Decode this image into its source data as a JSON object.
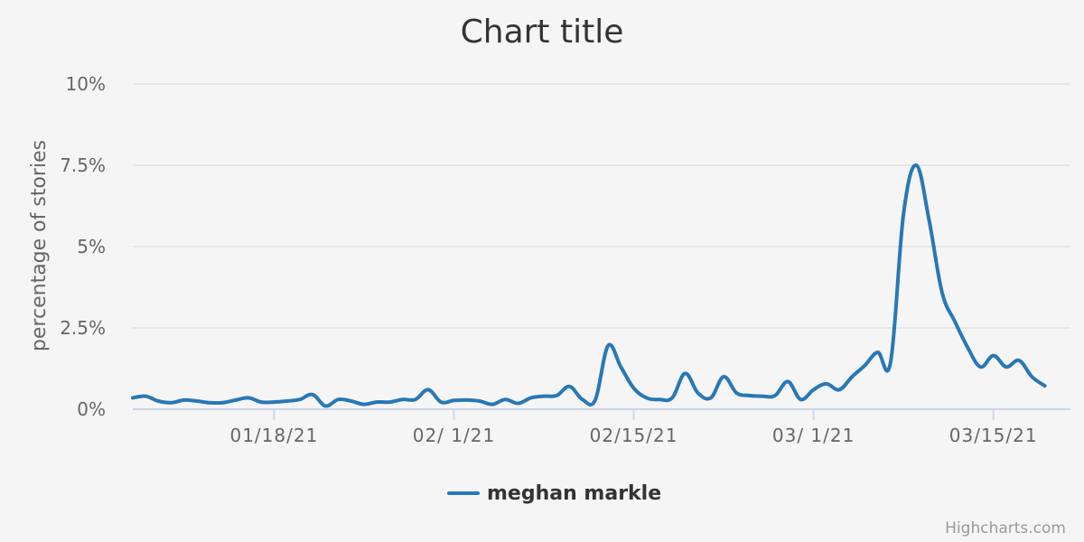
{
  "chart_data": {
    "type": "line",
    "title": "Chart title",
    "ylabel": "percentage of stories",
    "xlabel": "",
    "ylim": [
      0,
      10
    ],
    "yticks": [
      {
        "value": 0,
        "label": "0%"
      },
      {
        "value": 2.5,
        "label": "2.5%"
      },
      {
        "value": 5,
        "label": "5%"
      },
      {
        "value": 7.5,
        "label": "7.5%"
      },
      {
        "value": 10,
        "label": "10%"
      }
    ],
    "xrange": [
      "2021-01-07",
      "2021-03-21"
    ],
    "xticks": [
      {
        "date": "2021-01-18",
        "label": "01/18/21"
      },
      {
        "date": "2021-02-01",
        "label": "02/ 1/21"
      },
      {
        "date": "2021-02-15",
        "label": "02/15/21"
      },
      {
        "date": "2021-03-01",
        "label": "03/ 1/21"
      },
      {
        "date": "2021-03-15",
        "label": "03/15/21"
      }
    ],
    "grid": true,
    "legend_position": "bottom-center",
    "series": [
      {
        "name": "meghan markle",
        "color": "#2878b5",
        "points": [
          [
            "2021-01-07",
            0.35
          ],
          [
            "2021-01-08",
            0.4
          ],
          [
            "2021-01-09",
            0.25
          ],
          [
            "2021-01-10",
            0.2
          ],
          [
            "2021-01-11",
            0.28
          ],
          [
            "2021-01-12",
            0.25
          ],
          [
            "2021-01-13",
            0.2
          ],
          [
            "2021-01-14",
            0.2
          ],
          [
            "2021-01-15",
            0.28
          ],
          [
            "2021-01-16",
            0.35
          ],
          [
            "2021-01-17",
            0.22
          ],
          [
            "2021-01-18",
            0.22
          ],
          [
            "2021-01-19",
            0.25
          ],
          [
            "2021-01-20",
            0.3
          ],
          [
            "2021-01-21",
            0.45
          ],
          [
            "2021-01-22",
            0.1
          ],
          [
            "2021-01-23",
            0.3
          ],
          [
            "2021-01-24",
            0.25
          ],
          [
            "2021-01-25",
            0.15
          ],
          [
            "2021-01-26",
            0.22
          ],
          [
            "2021-01-27",
            0.22
          ],
          [
            "2021-01-28",
            0.3
          ],
          [
            "2021-01-29",
            0.3
          ],
          [
            "2021-01-30",
            0.6
          ],
          [
            "2021-01-31",
            0.22
          ],
          [
            "2021-02-01",
            0.27
          ],
          [
            "2021-02-02",
            0.28
          ],
          [
            "2021-02-03",
            0.25
          ],
          [
            "2021-02-04",
            0.15
          ],
          [
            "2021-02-05",
            0.3
          ],
          [
            "2021-02-06",
            0.18
          ],
          [
            "2021-02-07",
            0.35
          ],
          [
            "2021-02-08",
            0.4
          ],
          [
            "2021-02-09",
            0.42
          ],
          [
            "2021-02-10",
            0.7
          ],
          [
            "2021-02-11",
            0.3
          ],
          [
            "2021-02-12",
            0.28
          ],
          [
            "2021-02-13",
            1.95
          ],
          [
            "2021-02-14",
            1.3
          ],
          [
            "2021-02-15",
            0.65
          ],
          [
            "2021-02-16",
            0.35
          ],
          [
            "2021-02-17",
            0.3
          ],
          [
            "2021-02-18",
            0.35
          ],
          [
            "2021-02-19",
            1.1
          ],
          [
            "2021-02-20",
            0.5
          ],
          [
            "2021-02-21",
            0.35
          ],
          [
            "2021-02-22",
            1.0
          ],
          [
            "2021-02-23",
            0.5
          ],
          [
            "2021-02-24",
            0.42
          ],
          [
            "2021-02-25",
            0.4
          ],
          [
            "2021-02-26",
            0.42
          ],
          [
            "2021-02-27",
            0.85
          ],
          [
            "2021-02-28",
            0.3
          ],
          [
            "2021-03-01",
            0.6
          ],
          [
            "2021-03-02",
            0.78
          ],
          [
            "2021-03-03",
            0.6
          ],
          [
            "2021-03-04",
            1.0
          ],
          [
            "2021-03-05",
            1.35
          ],
          [
            "2021-03-06",
            1.75
          ],
          [
            "2021-03-07",
            1.45
          ],
          [
            "2021-03-08",
            6.0
          ],
          [
            "2021-03-09",
            7.5
          ],
          [
            "2021-03-10",
            5.8
          ],
          [
            "2021-03-11",
            3.6
          ],
          [
            "2021-03-12",
            2.7
          ],
          [
            "2021-03-13",
            1.9
          ],
          [
            "2021-03-14",
            1.3
          ],
          [
            "2021-03-15",
            1.65
          ],
          [
            "2021-03-16",
            1.3
          ],
          [
            "2021-03-17",
            1.5
          ],
          [
            "2021-03-18",
            1.0
          ],
          [
            "2021-03-19",
            0.72
          ]
        ]
      }
    ]
  },
  "credits": "Highcharts.com"
}
